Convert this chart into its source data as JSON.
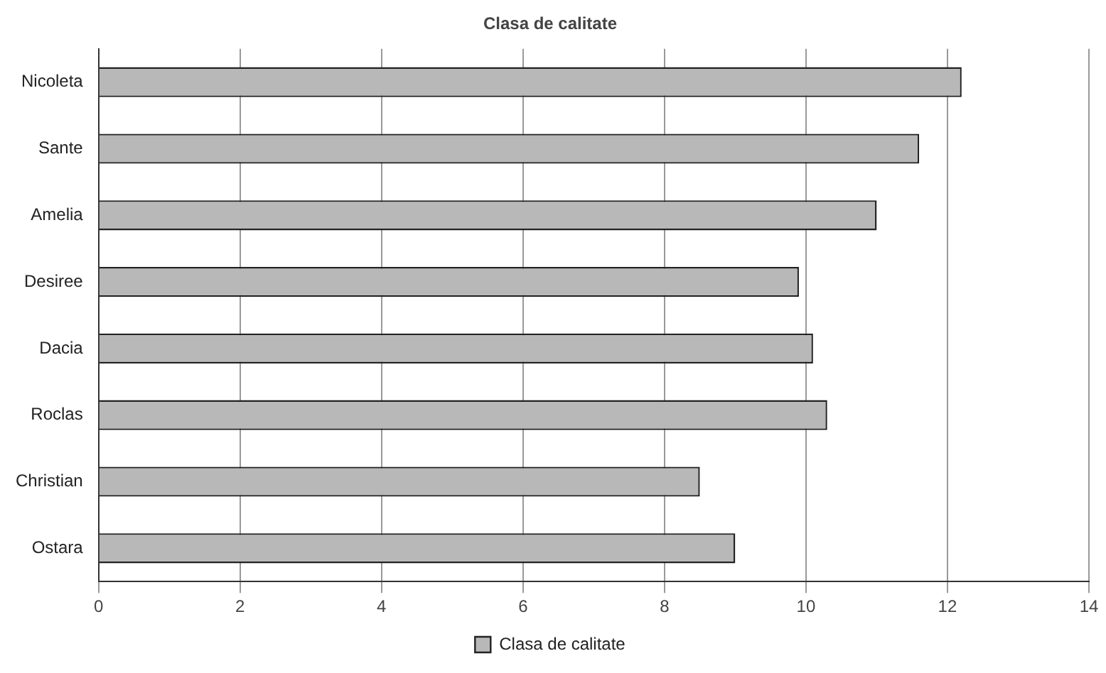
{
  "chart_data": {
    "type": "bar",
    "orientation": "horizontal",
    "title": "Clasa de calitate",
    "categories": [
      "Nicoleta",
      "Sante",
      "Amelia",
      "Desiree",
      "Dacia",
      "Roclas",
      "Christian",
      "Ostara"
    ],
    "series": [
      {
        "name": "Clasa de calitate",
        "color": "#b8b8b8",
        "values": [
          12.2,
          11.6,
          11.0,
          9.9,
          10.1,
          10.3,
          8.5,
          9.0
        ]
      }
    ],
    "xlim": [
      0,
      14
    ],
    "xticks": [
      0,
      2,
      4,
      6,
      8,
      10,
      12,
      14
    ],
    "grid": "x",
    "legend": "bottom"
  }
}
